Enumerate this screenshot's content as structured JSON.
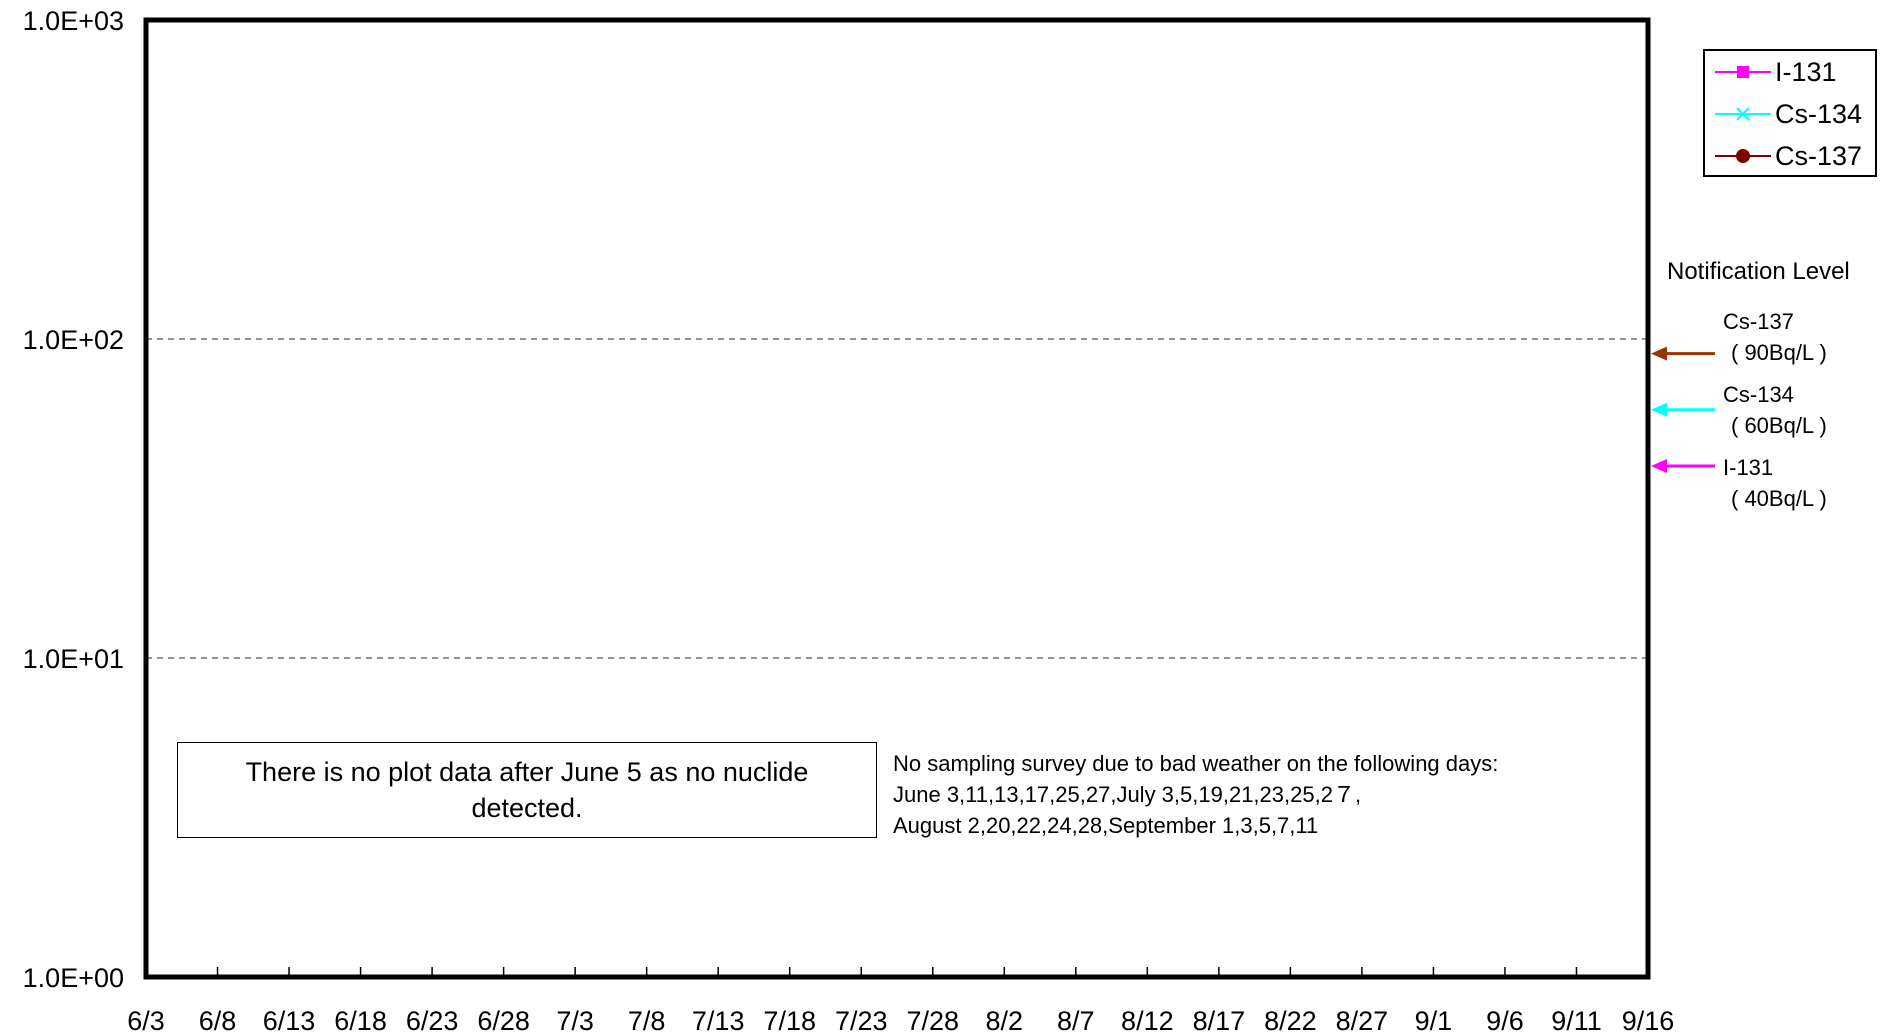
{
  "chart_data": {
    "type": "line",
    "title": "",
    "xlabel": "",
    "ylabel": "",
    "yscale": "log",
    "ylim": [
      1,
      1000
    ],
    "y_ticks": [
      {
        "value": 1,
        "label": "1.0E+00"
      },
      {
        "value": 10,
        "label": "1.0E+01"
      },
      {
        "value": 100,
        "label": "1.0E+02"
      },
      {
        "value": 1000,
        "label": "1.0E+03"
      }
    ],
    "x_ticks": [
      "6/3",
      "6/8",
      "6/13",
      "6/18",
      "6/23",
      "6/28",
      "7/3",
      "7/8",
      "7/13",
      "7/18",
      "7/23",
      "7/28",
      "8/2",
      "8/7",
      "8/12",
      "8/17",
      "8/22",
      "8/27",
      "9/1",
      "9/6",
      "9/11",
      "9/16"
    ],
    "grid": "horizontal dashed at 1.0E+01 and 1.0E+02",
    "legend_position": "top-right",
    "series": [
      {
        "name": "I-131",
        "color": "#ff00ff",
        "marker": "square",
        "values": []
      },
      {
        "name": "Cs-134",
        "color": "#00ffff",
        "marker": "x",
        "values": []
      },
      {
        "name": "Cs-137",
        "color": "#800000",
        "marker": "circle",
        "values": []
      }
    ],
    "notification_levels": {
      "title": "Notification Level",
      "items": [
        {
          "nuclide": "Cs-137",
          "label": "( 90Bq/L )",
          "value": 90,
          "color": "#993300"
        },
        {
          "nuclide": "Cs-134",
          "label": "( 60Bq/L )",
          "value": 60,
          "color": "#00ffff"
        },
        {
          "nuclide": "I-131",
          "label": "( 40Bq/L )",
          "value": 40,
          "color": "#ff00ff"
        }
      ]
    },
    "annotations": {
      "no_data_note": "There is no plot data after June 5 as no nuclide detected.",
      "sampling_note": [
        "No sampling survey due to bad weather on the following days:",
        "June 3,11,13,17,25,27,July 3,5,19,21,23,25,2７,",
        "August 2,20,22,24,28,September 1,3,5,7,11"
      ]
    }
  }
}
